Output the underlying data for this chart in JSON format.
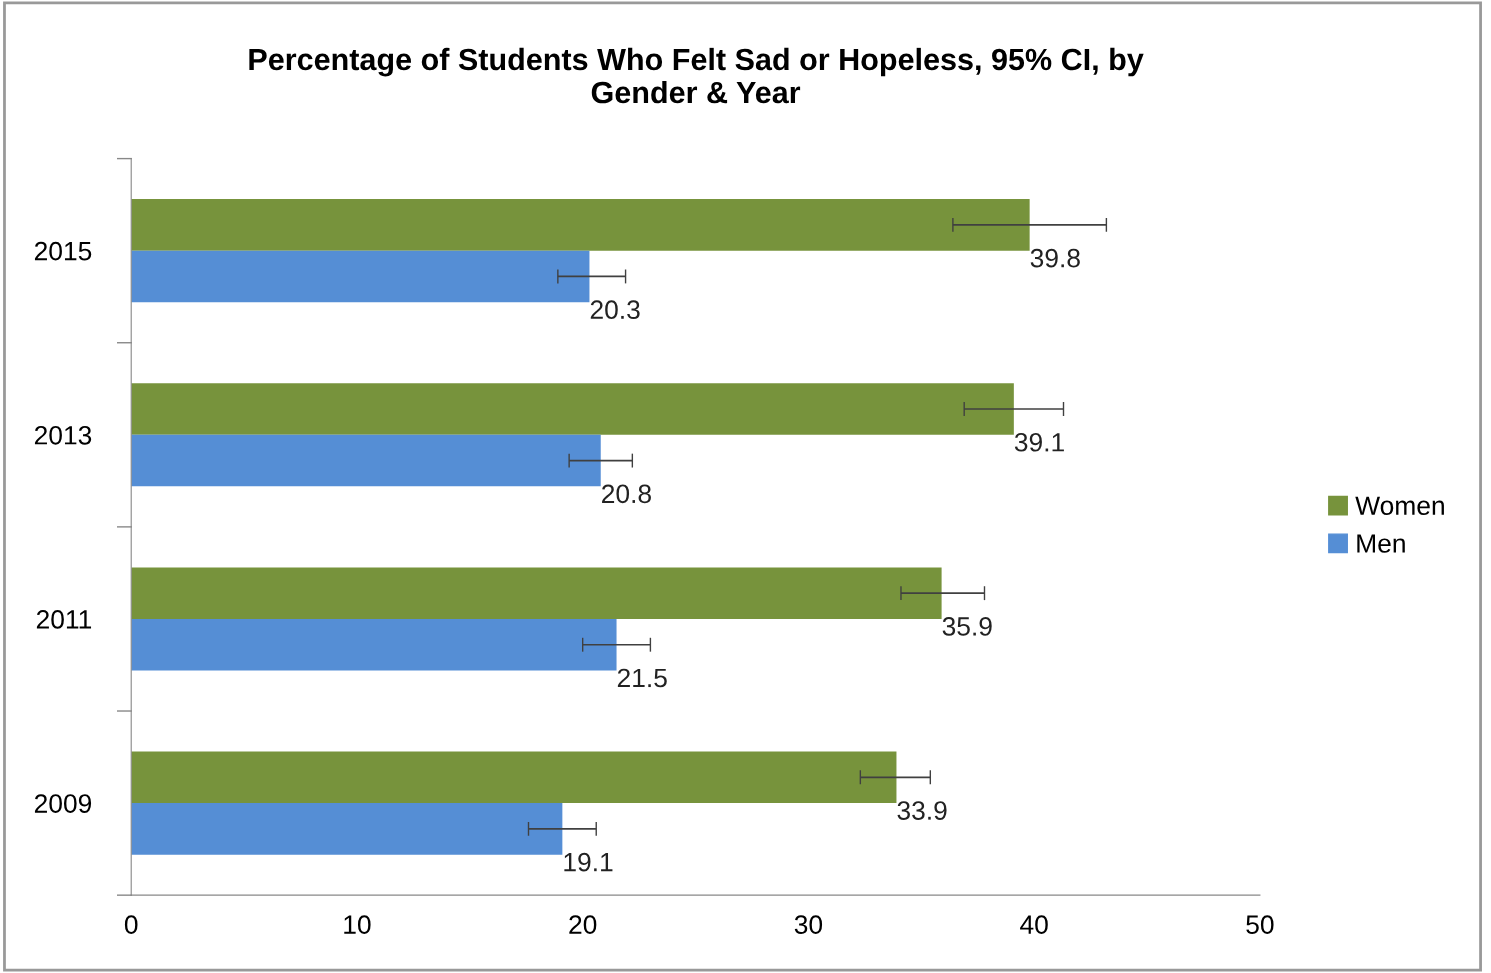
{
  "chart_data": {
    "type": "bar",
    "orientation": "horizontal",
    "title": "Percentage of Students Who Felt Sad or Hopeless, 95% CI, by\nGender & Year",
    "categories": [
      "2015",
      "2013",
      "2011",
      "2009"
    ],
    "series": [
      {
        "name": "Women",
        "color": "#77933c",
        "values": [
          39.8,
          39.1,
          35.9,
          33.9
        ],
        "errors": [
          [
            36.4,
            43.2
          ],
          [
            36.9,
            41.3
          ],
          [
            34.1,
            37.8
          ],
          [
            32.3,
            35.4
          ]
        ]
      },
      {
        "name": "Men",
        "color": "#558ed5",
        "values": [
          20.3,
          20.8,
          21.5,
          19.1
        ],
        "errors": [
          [
            18.9,
            21.9
          ],
          [
            19.4,
            22.2
          ],
          [
            20.0,
            23.0
          ],
          [
            17.6,
            20.6
          ]
        ]
      }
    ],
    "xlim": [
      0,
      50
    ],
    "xticks": [
      0,
      10,
      20,
      30,
      40,
      50
    ],
    "data_labels": true,
    "legend": "right",
    "grid": false
  }
}
